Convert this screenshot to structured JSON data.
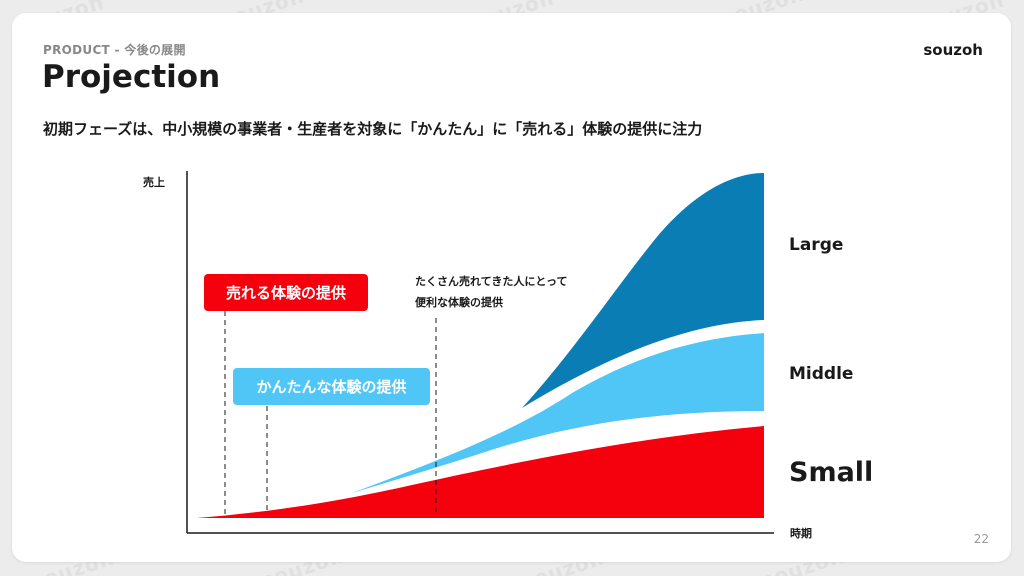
{
  "watermark_text": "souzoh",
  "header": {
    "section": "PRODUCT - 今後の展開",
    "title": "Projection",
    "subtitle": "初期フェーズは、中小規模の事業者・生産者を対象に「かんたん」に「売れる」体験の提供に注力",
    "logo": "souzoh"
  },
  "page_number": "22",
  "diagram": {
    "y_axis_label": "売上",
    "x_axis_label": "時期",
    "series": [
      {
        "label": "Large",
        "color": "#0a7db5"
      },
      {
        "label": "Middle",
        "color": "#4fc6f5"
      },
      {
        "label": "Small",
        "color": "#f5000d"
      }
    ],
    "callouts": {
      "sell_experience": {
        "text": "売れる体験の提供",
        "color": "#f5000d"
      },
      "easy_experience": {
        "text": "かんたんな体験の提供",
        "color": "#4fc6f5"
      }
    },
    "note_line1": "たくさん売れてきた人にとって",
    "note_line2": "便利な体験の提供"
  }
}
